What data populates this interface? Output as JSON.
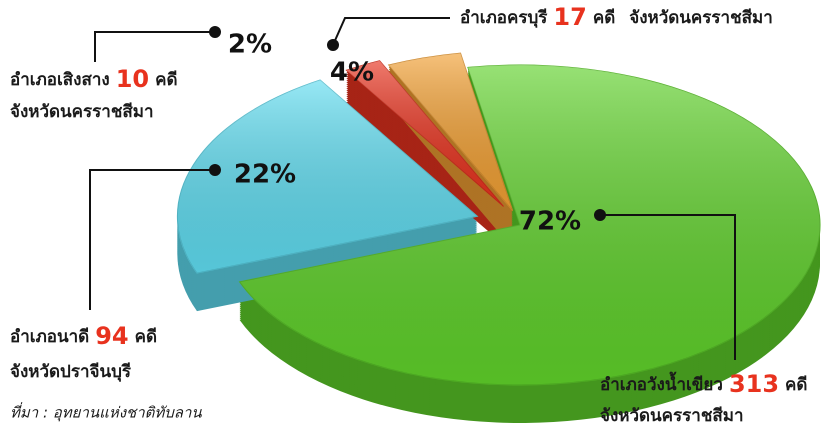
{
  "chart_data": {
    "type": "pie",
    "categories": [
      "อำเภอวังน้ำเขียว",
      "อำเภอนาดี",
      "อำเภอเสิงสาง",
      "อำเภอครบุรี"
    ],
    "values": [
      72,
      22,
      2,
      4
    ],
    "value_labels": [
      "72%",
      "22%",
      "2%",
      "4%"
    ],
    "counts": [
      313,
      94,
      10,
      17
    ],
    "count_unit": [
      "คดี",
      "คดี",
      "คดี",
      "คดี"
    ],
    "provinces": [
      "จังหวัดนครราชสีมา",
      "จังหวัดปราจีนบุรี",
      "จังหวัดนครราชสีมา",
      "จังหวัดนครราชสีมา"
    ],
    "colors": [
      "#5fd12a",
      "#5fdcf0",
      "#e8321e",
      "#f2a033"
    ],
    "source": "ที่มา : อุทยานแห่งชาติทับลาน"
  }
}
